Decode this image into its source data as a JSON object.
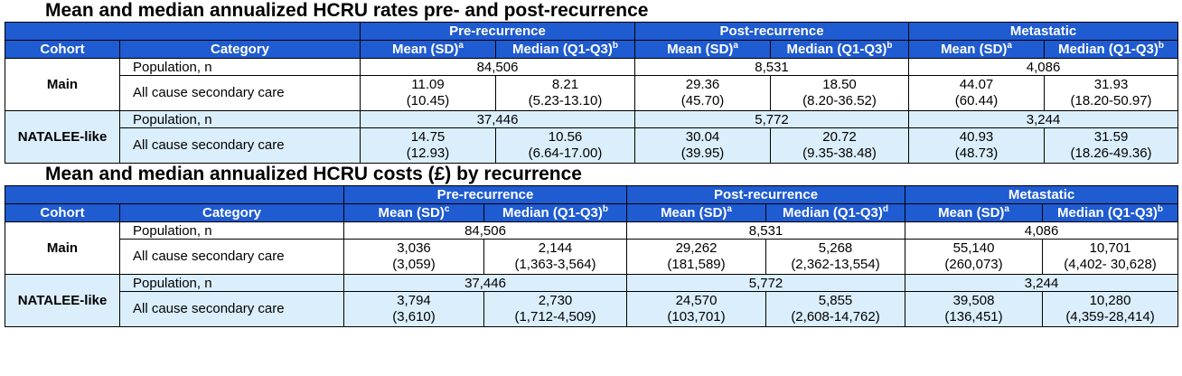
{
  "tables": [
    {
      "title": "Mean and median annualized HCRU rates pre- and post-recurrence",
      "groups": [
        "Pre-recurrence",
        "Post-recurrence",
        "Metastatic"
      ],
      "columns": [
        "Cohort",
        "Category",
        "Mean (SD)",
        "a",
        "Median (Q1-Q3)",
        "b",
        "Mean (SD)",
        "a",
        "Median (Q1-Q3)",
        "b",
        "Mean (SD)",
        "a",
        "Median (Q1-Q3)",
        "b"
      ],
      "cohorts": [
        {
          "name": "Main",
          "pop_label": "Population, n",
          "pops": [
            "84,506",
            "8,531",
            "4,086"
          ],
          "cat_label": "All cause secondary care",
          "vals": [
            [
              "11.09",
              "(10.45)"
            ],
            [
              "8.21",
              "(5.23-13.10)"
            ],
            [
              "29.36",
              "(45.70)"
            ],
            [
              "18.50",
              "(8.20-36.52)"
            ],
            [
              "44.07",
              "(60.44)"
            ],
            [
              "31.93",
              "(18.20-50.97)"
            ]
          ]
        },
        {
          "name": "NATALEE-like",
          "pop_label": "Population, n",
          "pops": [
            "37,446",
            "5,772",
            "3,244"
          ],
          "cat_label": "All cause secondary care",
          "vals": [
            [
              "14.75",
              "(12.93)"
            ],
            [
              "10.56",
              "(6.64-17.00)"
            ],
            [
              "30.04",
              "(39.95)"
            ],
            [
              "20.72",
              "(9.35-38.48)"
            ],
            [
              "40.93",
              "(48.73)"
            ],
            [
              "31.59",
              "(18.26-49.36)"
            ]
          ]
        }
      ]
    },
    {
      "title": "Mean and median annualized HCRU costs (£) by recurrence",
      "groups": [
        "Pre-recurrence",
        "Post-recurrence",
        "Metastatic"
      ],
      "columns": [
        "Cohort",
        "Category",
        "Mean (SD)",
        "c",
        "Median (Q1-Q3)",
        "b",
        "Mean (SD)",
        "a",
        "Median (Q1-Q3)",
        "d",
        "Mean (SD)",
        "a",
        "Median (Q1-Q3)",
        "b"
      ],
      "cohorts": [
        {
          "name": "Main",
          "pop_label": "Population, n",
          "pops": [
            "84,506",
            "8,531",
            "4,086"
          ],
          "cat_label": "All cause secondary care",
          "vals": [
            [
              "3,036",
              "(3,059)"
            ],
            [
              "2,144",
              "(1,363-3,564)"
            ],
            [
              "29,262",
              "(181,589)"
            ],
            [
              "5,268",
              "(2,362-13,554)"
            ],
            [
              "55,140",
              "(260,073)"
            ],
            [
              "10,701",
              "(4,402- 30,628)"
            ]
          ]
        },
        {
          "name": "NATALEE-like",
          "pop_label": "Population, n",
          "pops": [
            "37,446",
            "5,772",
            "3,244"
          ],
          "cat_label": "All cause secondary care",
          "vals": [
            [
              "3,794",
              "(3,610)"
            ],
            [
              "2,730",
              "(1,712-4,509)"
            ],
            [
              "24,570",
              "(103,701)"
            ],
            [
              "5,855",
              "(2,608-14,762)"
            ],
            [
              "39,508",
              "(136,451)"
            ],
            [
              "10,280",
              "(4,359-28,414)"
            ]
          ]
        }
      ]
    }
  ]
}
